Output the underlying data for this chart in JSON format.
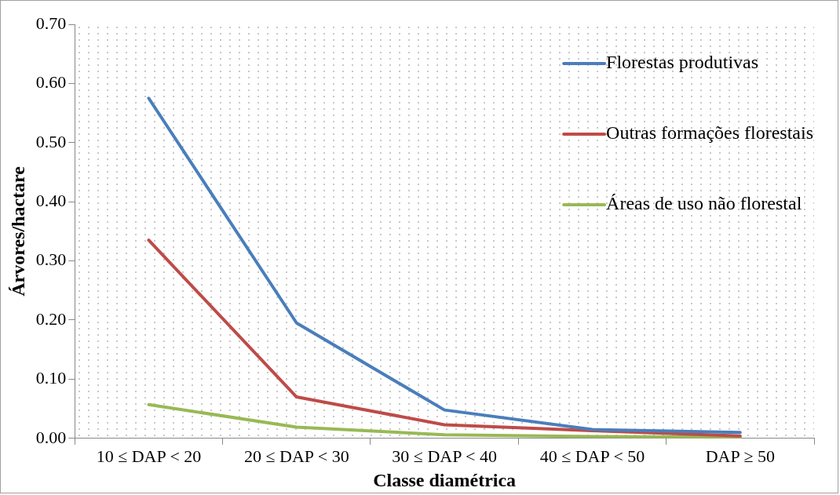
{
  "chart_data": {
    "type": "line",
    "xlabel": "Classe diamétrica",
    "ylabel": "Árvores/hactare",
    "categories": [
      "10 ≤ DAP < 20",
      "20 ≤ DAP < 30",
      "30 ≤ DAP < 40",
      "40 ≤ DAP < 50",
      "DAP ≥ 50"
    ],
    "series": [
      {
        "name": "Florestas produtivas",
        "color": "#4a7ebb",
        "values": [
          0.575,
          0.195,
          0.048,
          0.015,
          0.01
        ]
      },
      {
        "name": "Outras formações florestais",
        "color": "#be4b48",
        "values": [
          0.335,
          0.07,
          0.023,
          0.013,
          0.004
        ]
      },
      {
        "name": "Áreas de uso não florestal",
        "color": "#98b954",
        "values": [
          0.057,
          0.019,
          0.006,
          0.003,
          0.002
        ]
      }
    ],
    "ylim": [
      0,
      0.7
    ],
    "yticks": [
      {
        "value": 0,
        "label": "0.00"
      },
      {
        "value": 0.1,
        "label": "0.10"
      },
      {
        "value": 0.2,
        "label": "0.20"
      },
      {
        "value": 0.3,
        "label": "0.30"
      },
      {
        "value": 0.4,
        "label": "0.40"
      },
      {
        "value": 0.5,
        "label": "0.50"
      },
      {
        "value": 0.6,
        "label": "0.60"
      },
      {
        "value": 0.7,
        "label": "0.70"
      }
    ],
    "grid": false,
    "legend": "top right",
    "marker": "none",
    "line_style": "solid"
  }
}
